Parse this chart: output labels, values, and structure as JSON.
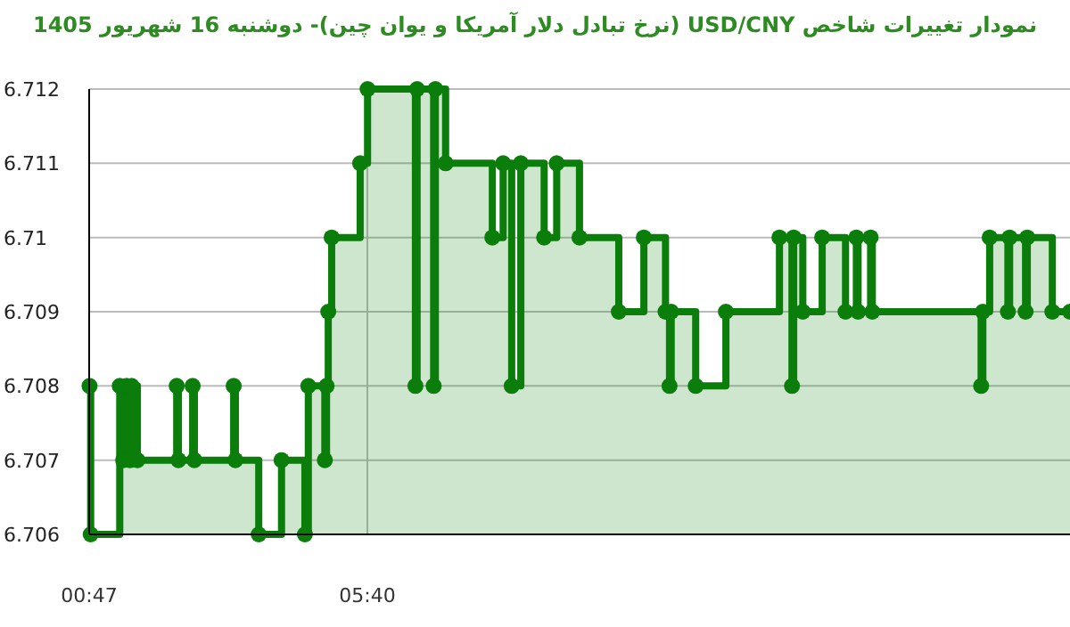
{
  "chart_data": {
    "type": "step",
    "title": "نمودار تغییرات شاخص USD/CNY (نرخ تبادل دلار آمریکا و یوان چین)-  دوشنبه  16 شهریور 1405",
    "x": [
      0.79,
      0.81,
      1.32,
      1.38,
      1.44,
      1.5,
      1.53,
      1.63,
      2.32,
      2.35,
      2.6,
      2.63,
      3.32,
      3.35,
      3.76,
      4.16,
      4.57,
      4.63,
      4.92,
      4.95,
      4.98,
      5.04,
      5.54,
      5.67,
      6.51,
      6.54,
      6.83,
      6.86,
      7.04,
      7.86,
      8.05,
      8.2,
      8.36,
      8.77,
      8.99,
      9.39,
      10.08,
      10.52,
      10.9,
      10.97,
      11.0,
      11.43,
      11.96,
      12.9,
      13.12,
      13.15,
      13.31,
      13.65,
      14.06,
      14.25,
      14.28,
      14.5,
      14.53,
      16.44,
      16.47,
      16.59,
      16.91,
      16.94,
      17.22,
      17.25,
      17.69,
      18.0
    ],
    "series": [
      {
        "color": "#0a7d0a",
        "values": [
          6.708,
          6.706,
          6.708,
          6.707,
          6.708,
          6.707,
          6.708,
          6.707,
          6.708,
          6.707,
          6.708,
          6.707,
          6.708,
          6.707,
          6.706,
          6.707,
          6.706,
          6.708,
          6.707,
          6.708,
          6.709,
          6.71,
          6.711,
          6.712,
          6.708,
          6.712,
          6.708,
          6.712,
          6.711,
          6.71,
          6.711,
          6.708,
          6.711,
          6.71,
          6.711,
          6.71,
          6.709,
          6.71,
          6.709,
          6.708,
          6.709,
          6.708,
          6.709,
          6.71,
          6.708,
          6.71,
          6.709,
          6.71,
          6.709,
          6.71,
          6.709,
          6.71,
          6.709,
          6.708,
          6.709,
          6.71,
          6.709,
          6.71,
          6.709,
          6.71,
          6.709,
          6.709
        ]
      }
    ],
    "xlim": [
      0.7833,
      18.0
    ],
    "xticks": [
      {
        "value": 0.7833,
        "label": "00:47"
      },
      {
        "value": 5.6667,
        "label": "05:40"
      }
    ],
    "ylim": [
      6.706,
      6.712
    ],
    "yticks": [
      6.706,
      6.707,
      6.708,
      6.709,
      6.71,
      6.711,
      6.712
    ],
    "grid": true,
    "marker": "circle",
    "line_style": "solid"
  }
}
